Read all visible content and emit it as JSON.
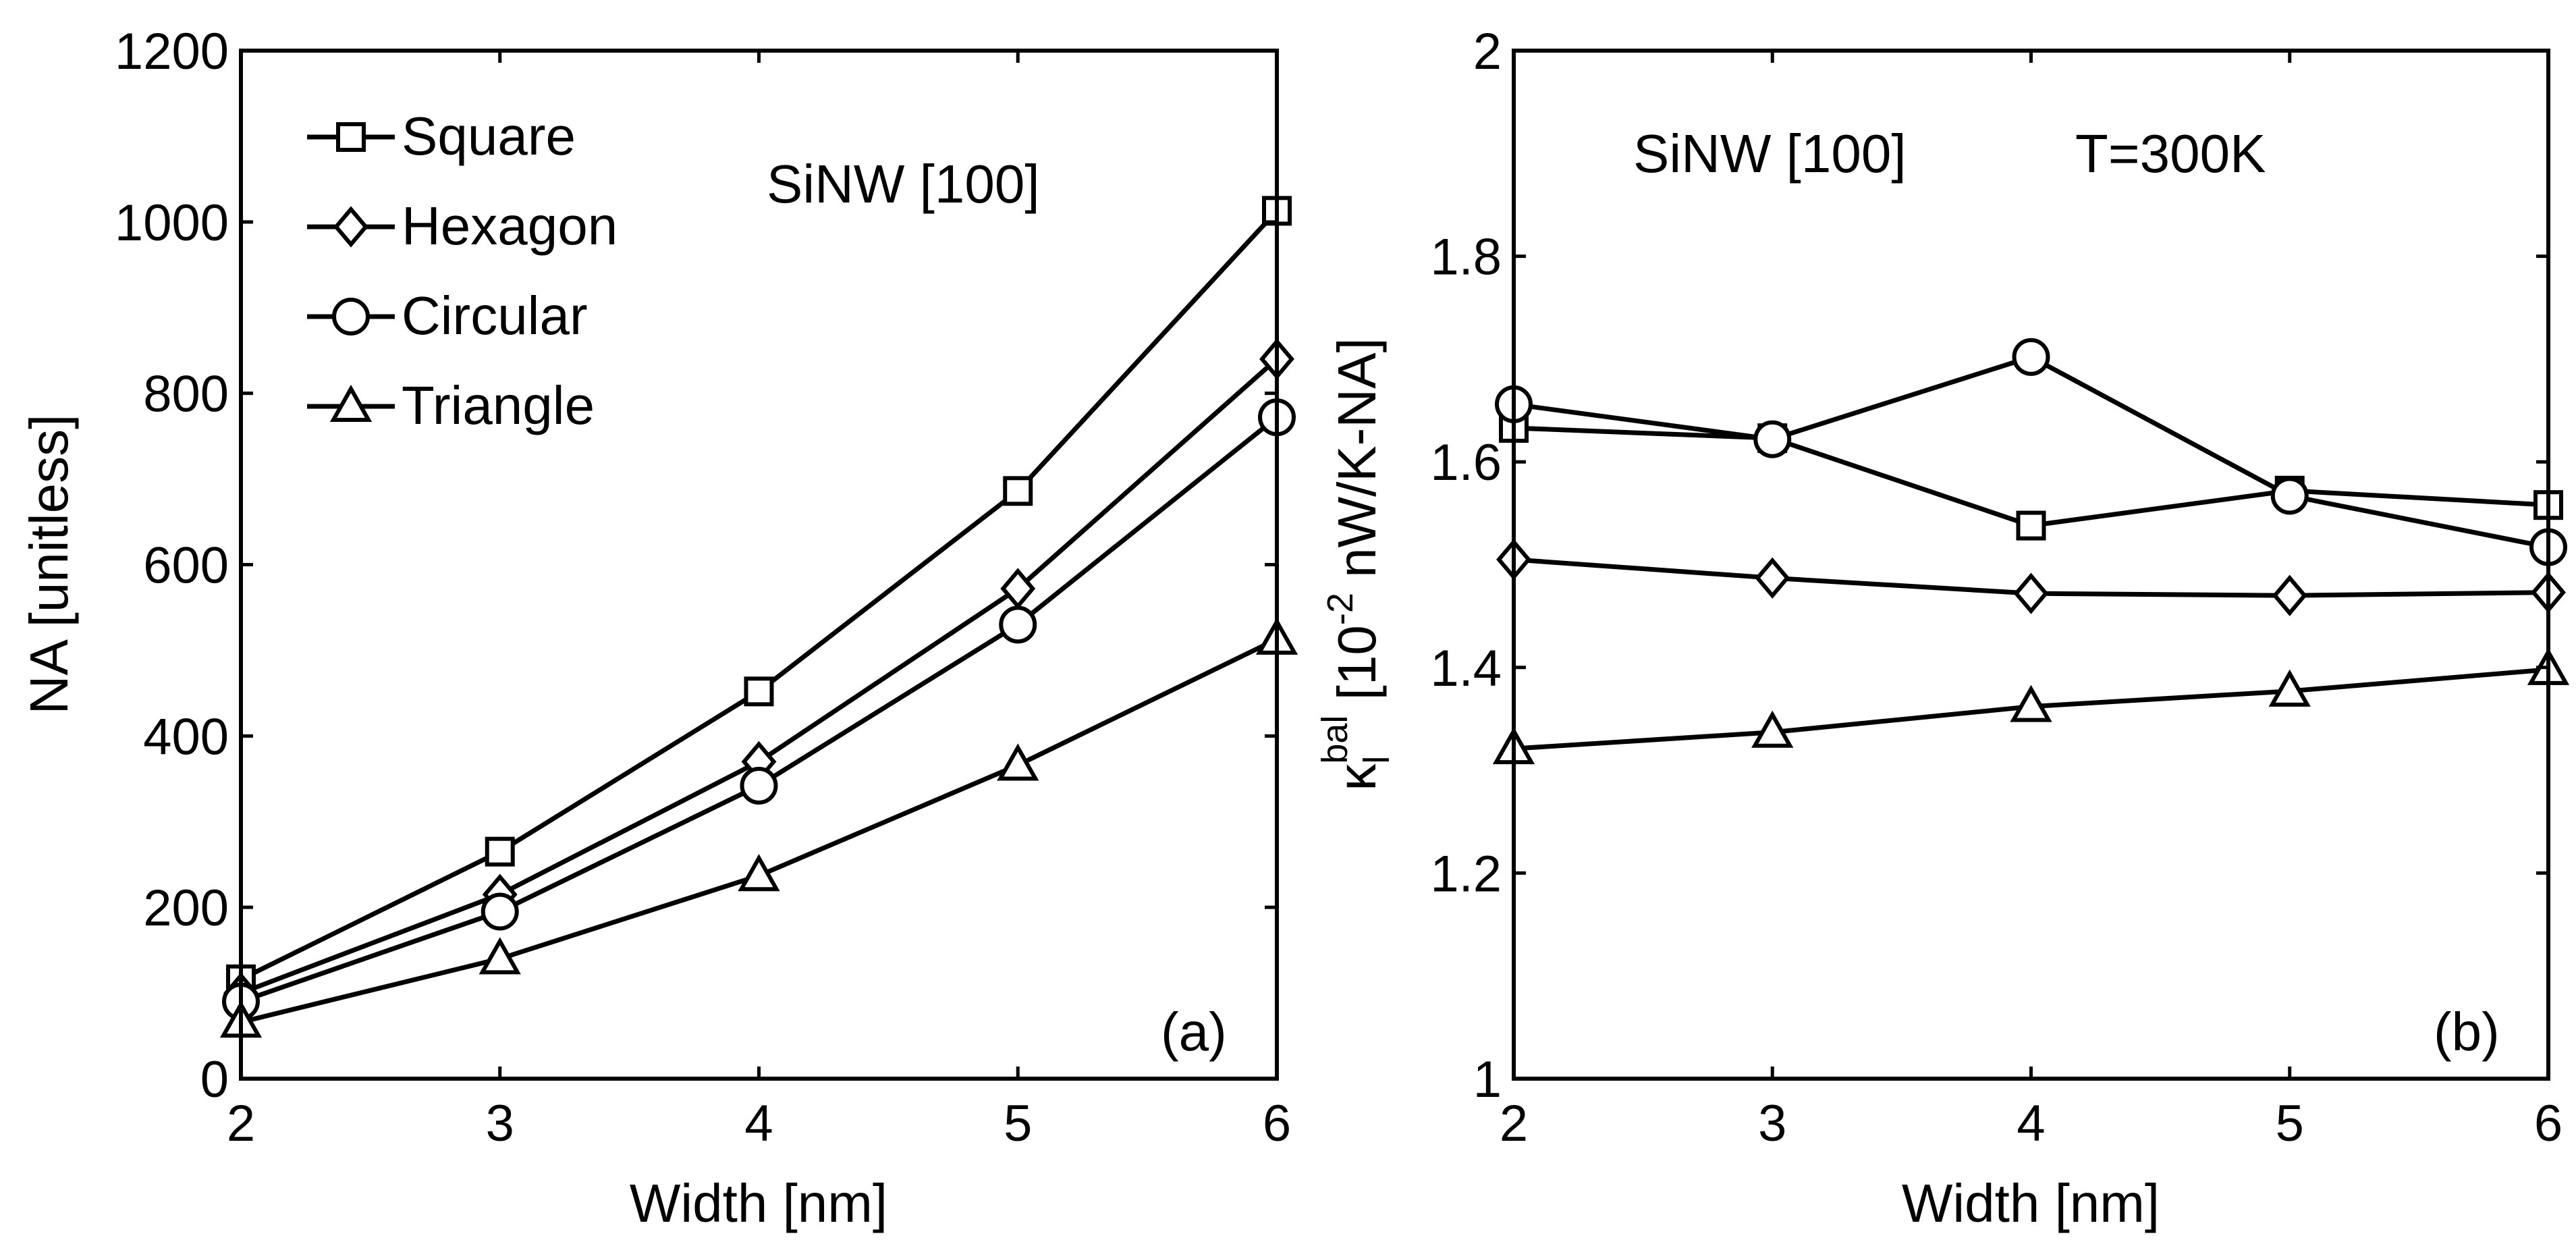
{
  "chart_data": [
    {
      "type": "line",
      "panel_label": "(a)",
      "annotations": [
        "SiNW [100]"
      ],
      "xlabel": "Width [nm]",
      "ylabel": "NA [unitless]",
      "xlim": [
        2,
        6
      ],
      "ylim": [
        0,
        1200
      ],
      "xticks": [
        2,
        3,
        4,
        5,
        6
      ],
      "yticks": [
        0,
        200,
        400,
        600,
        800,
        1000,
        1200
      ],
      "grid": false,
      "legend": {
        "placement": "top-left",
        "entries": [
          "Square",
          "Hexagon",
          "Circular",
          "Triangle"
        ]
      },
      "x": [
        2,
        3,
        4,
        5,
        6
      ],
      "series": [
        {
          "name": "Square",
          "marker": "square",
          "values": [
            116,
            265,
            452,
            686,
            1013
          ]
        },
        {
          "name": "Hexagon",
          "marker": "diamond",
          "values": [
            100,
            215,
            370,
            572,
            840
          ]
        },
        {
          "name": "Circular",
          "marker": "circle",
          "values": [
            90,
            195,
            342,
            530,
            772
          ]
        },
        {
          "name": "Triangle",
          "marker": "triangle",
          "values": [
            66,
            140,
            237,
            366,
            513
          ]
        }
      ]
    },
    {
      "type": "line",
      "panel_label": "(b)",
      "annotations": [
        "SiNW [100]",
        "T=300K"
      ],
      "xlabel": "Width [nm]",
      "ylabel": {
        "kappa": "κ",
        "subscript": "l",
        "superscript": "bal",
        "text": " [10",
        "exponent": "-2",
        "unit": " nW/K-NA]"
      },
      "xlim": [
        2,
        6
      ],
      "ylim": [
        1,
        2
      ],
      "xticks": [
        2,
        3,
        4,
        5,
        6
      ],
      "yticks": [
        1,
        1.2,
        1.4,
        1.6,
        1.8,
        2
      ],
      "grid": false,
      "x": [
        2,
        3,
        4,
        5,
        6
      ],
      "series": [
        {
          "name": "Square",
          "marker": "square",
          "values": [
            1.633,
            1.623,
            1.538,
            1.572,
            1.558
          ]
        },
        {
          "name": "Hexagon",
          "marker": "diamond",
          "values": [
            1.505,
            1.487,
            1.472,
            1.47,
            1.473
          ]
        },
        {
          "name": "Circular",
          "marker": "circle",
          "values": [
            1.656,
            1.622,
            1.702,
            1.567,
            1.517
          ]
        },
        {
          "name": "Triangle",
          "marker": "triangle",
          "values": [
            1.321,
            1.337,
            1.362,
            1.377,
            1.398
          ]
        }
      ]
    }
  ]
}
